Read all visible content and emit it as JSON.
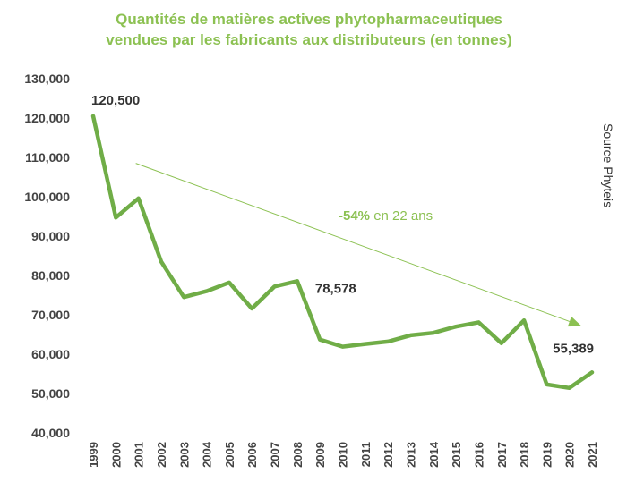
{
  "chart_data": {
    "type": "line",
    "title_line1": "Quantités de matières actives phytopharmaceutiques",
    "title_line2": "vendues par les fabricants aux distributeurs (en tonnes)",
    "x": [
      "1999",
      "2000",
      "2001",
      "2002",
      "2003",
      "2004",
      "2005",
      "2006",
      "2007",
      "2008",
      "2009",
      "2010",
      "2011",
      "2012",
      "2013",
      "2014",
      "2015",
      "2016",
      "2017",
      "2018",
      "2019",
      "2020",
      "2021"
    ],
    "values": [
      120500,
      94700,
      99600,
      83500,
      74500,
      76000,
      78200,
      71600,
      77200,
      78578,
      63700,
      61900,
      62600,
      63200,
      64800,
      65400,
      67000,
      68100,
      62800,
      68600,
      52300,
      51400,
      55389
    ],
    "ylim": [
      40000,
      130000
    ],
    "yticks": [
      "40,000",
      "50,000",
      "60,000",
      "70,000",
      "80,000",
      "90,000",
      "100,000",
      "110,000",
      "120,000",
      "130,000"
    ],
    "ytick_values": [
      40000,
      50000,
      60000,
      70000,
      80000,
      90000,
      100000,
      110000,
      120000,
      130000
    ],
    "line_color": "#70ad47",
    "data_labels": [
      {
        "index": 0,
        "text": "120,500"
      },
      {
        "index": 9,
        "text": "78,578"
      },
      {
        "index": 22,
        "text": "55,389"
      }
    ],
    "trend_annotation": {
      "bold": "-54%",
      "rest": " en 22 ans",
      "from_x": "2001",
      "from_y": 108500,
      "to_x": "2021",
      "to_y": 67200,
      "color": "#8cc152"
    },
    "source": "Source Phyteis",
    "grid": false
  }
}
